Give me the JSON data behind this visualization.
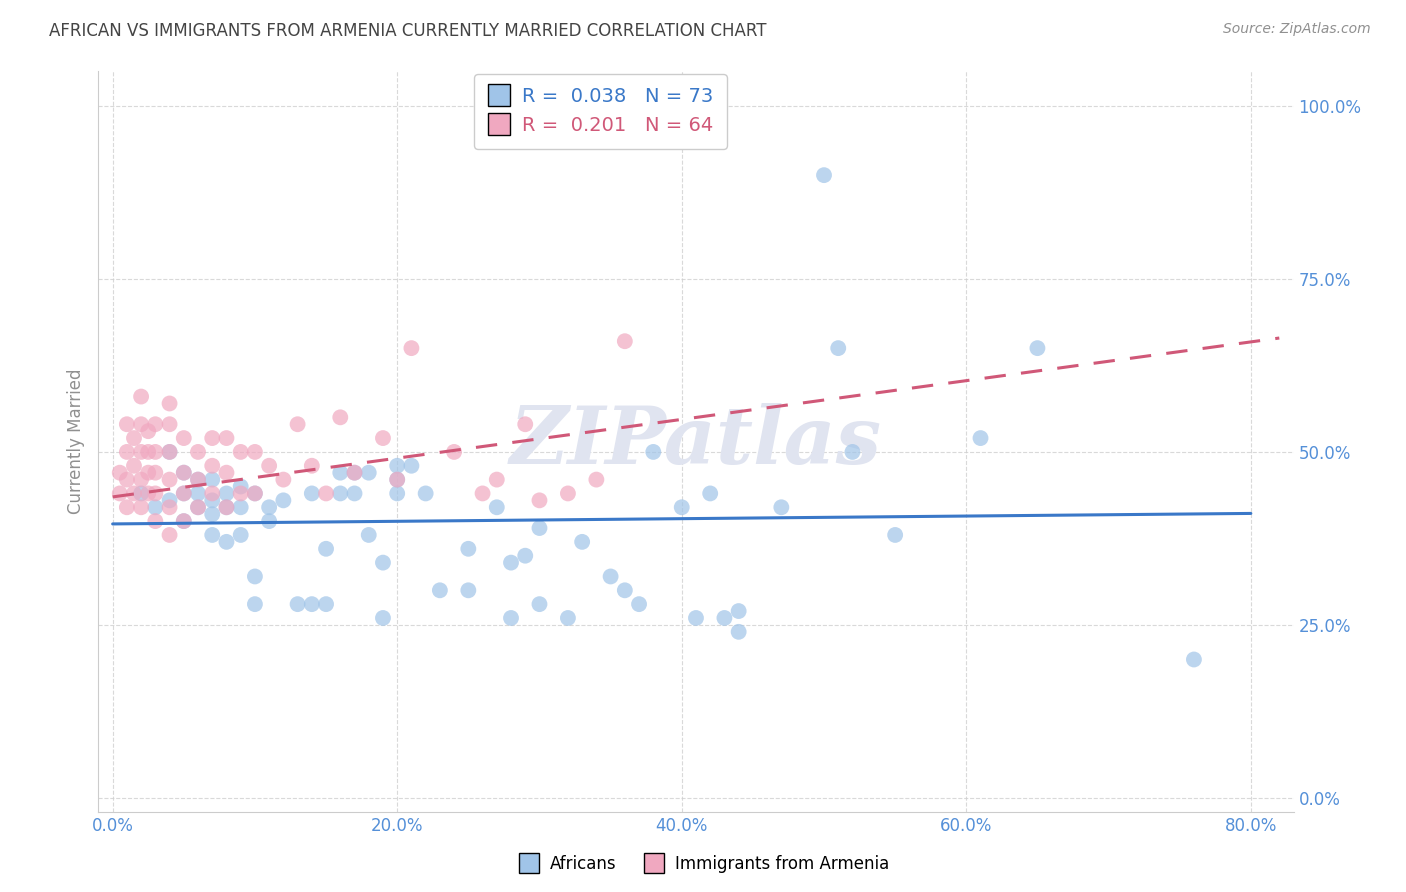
{
  "title": "AFRICAN VS IMMIGRANTS FROM ARMENIA CURRENTLY MARRIED CORRELATION CHART",
  "source": "Source: ZipAtlas.com",
  "xlabel_ticks": [
    "0.0%",
    "20.0%",
    "40.0%",
    "60.0%",
    "80.0%"
  ],
  "xlabel_tick_vals": [
    0.0,
    0.2,
    0.4,
    0.6,
    0.8
  ],
  "ylabel_ticks": [
    "0.0%",
    "25.0%",
    "50.0%",
    "75.0%",
    "100.0%"
  ],
  "ylabel_tick_vals": [
    0.0,
    0.25,
    0.5,
    0.75,
    1.0
  ],
  "ylabel": "Currently Married",
  "xlim": [
    -0.01,
    0.83
  ],
  "ylim": [
    -0.02,
    1.05
  ],
  "african_color": "#a0c4e8",
  "armenia_color": "#f0a8c0",
  "african_line_color": "#3a78c8",
  "armenia_line_color": "#d05878",
  "background_color": "#ffffff",
  "grid_color": "#d0d0d0",
  "title_color": "#444444",
  "axis_label_color": "#5590d8",
  "watermark": "ZIPatlas",
  "watermark_color": "#e0e4f0",
  "africans_x": [
    0.02,
    0.03,
    0.04,
    0.04,
    0.05,
    0.05,
    0.05,
    0.06,
    0.06,
    0.06,
    0.07,
    0.07,
    0.07,
    0.07,
    0.08,
    0.08,
    0.08,
    0.09,
    0.09,
    0.09,
    0.1,
    0.1,
    0.1,
    0.11,
    0.11,
    0.12,
    0.13,
    0.14,
    0.14,
    0.15,
    0.15,
    0.16,
    0.16,
    0.17,
    0.17,
    0.18,
    0.18,
    0.19,
    0.19,
    0.2,
    0.2,
    0.2,
    0.21,
    0.22,
    0.23,
    0.25,
    0.25,
    0.27,
    0.28,
    0.28,
    0.29,
    0.3,
    0.3,
    0.32,
    0.33,
    0.35,
    0.36,
    0.37,
    0.38,
    0.4,
    0.41,
    0.42,
    0.43,
    0.44,
    0.44,
    0.47,
    0.5,
    0.51,
    0.52,
    0.55,
    0.61,
    0.65,
    0.76
  ],
  "africans_y": [
    0.44,
    0.42,
    0.43,
    0.5,
    0.4,
    0.44,
    0.47,
    0.42,
    0.44,
    0.46,
    0.38,
    0.41,
    0.43,
    0.46,
    0.37,
    0.42,
    0.44,
    0.38,
    0.42,
    0.45,
    0.28,
    0.32,
    0.44,
    0.4,
    0.42,
    0.43,
    0.28,
    0.28,
    0.44,
    0.28,
    0.36,
    0.44,
    0.47,
    0.44,
    0.47,
    0.38,
    0.47,
    0.26,
    0.34,
    0.44,
    0.46,
    0.48,
    0.48,
    0.44,
    0.3,
    0.3,
    0.36,
    0.42,
    0.26,
    0.34,
    0.35,
    0.28,
    0.39,
    0.26,
    0.37,
    0.32,
    0.3,
    0.28,
    0.5,
    0.42,
    0.26,
    0.44,
    0.26,
    0.24,
    0.27,
    0.42,
    0.9,
    0.65,
    0.5,
    0.38,
    0.52,
    0.65,
    0.2
  ],
  "armenia_x": [
    0.005,
    0.005,
    0.01,
    0.01,
    0.01,
    0.01,
    0.015,
    0.015,
    0.015,
    0.02,
    0.02,
    0.02,
    0.02,
    0.02,
    0.025,
    0.025,
    0.025,
    0.025,
    0.03,
    0.03,
    0.03,
    0.03,
    0.03,
    0.04,
    0.04,
    0.04,
    0.04,
    0.04,
    0.04,
    0.05,
    0.05,
    0.05,
    0.05,
    0.06,
    0.06,
    0.06,
    0.07,
    0.07,
    0.07,
    0.08,
    0.08,
    0.08,
    0.09,
    0.09,
    0.1,
    0.1,
    0.11,
    0.12,
    0.13,
    0.14,
    0.15,
    0.16,
    0.17,
    0.19,
    0.2,
    0.21,
    0.24,
    0.26,
    0.27,
    0.29,
    0.3,
    0.32,
    0.34,
    0.36
  ],
  "armenia_y": [
    0.44,
    0.47,
    0.42,
    0.46,
    0.5,
    0.54,
    0.44,
    0.48,
    0.52,
    0.42,
    0.46,
    0.5,
    0.54,
    0.58,
    0.44,
    0.47,
    0.5,
    0.53,
    0.4,
    0.44,
    0.47,
    0.5,
    0.54,
    0.38,
    0.42,
    0.46,
    0.5,
    0.54,
    0.57,
    0.4,
    0.44,
    0.47,
    0.52,
    0.42,
    0.46,
    0.5,
    0.44,
    0.48,
    0.52,
    0.42,
    0.47,
    0.52,
    0.44,
    0.5,
    0.44,
    0.5,
    0.48,
    0.46,
    0.54,
    0.48,
    0.44,
    0.55,
    0.47,
    0.52,
    0.46,
    0.65,
    0.5,
    0.44,
    0.46,
    0.54,
    0.43,
    0.44,
    0.46,
    0.66
  ]
}
